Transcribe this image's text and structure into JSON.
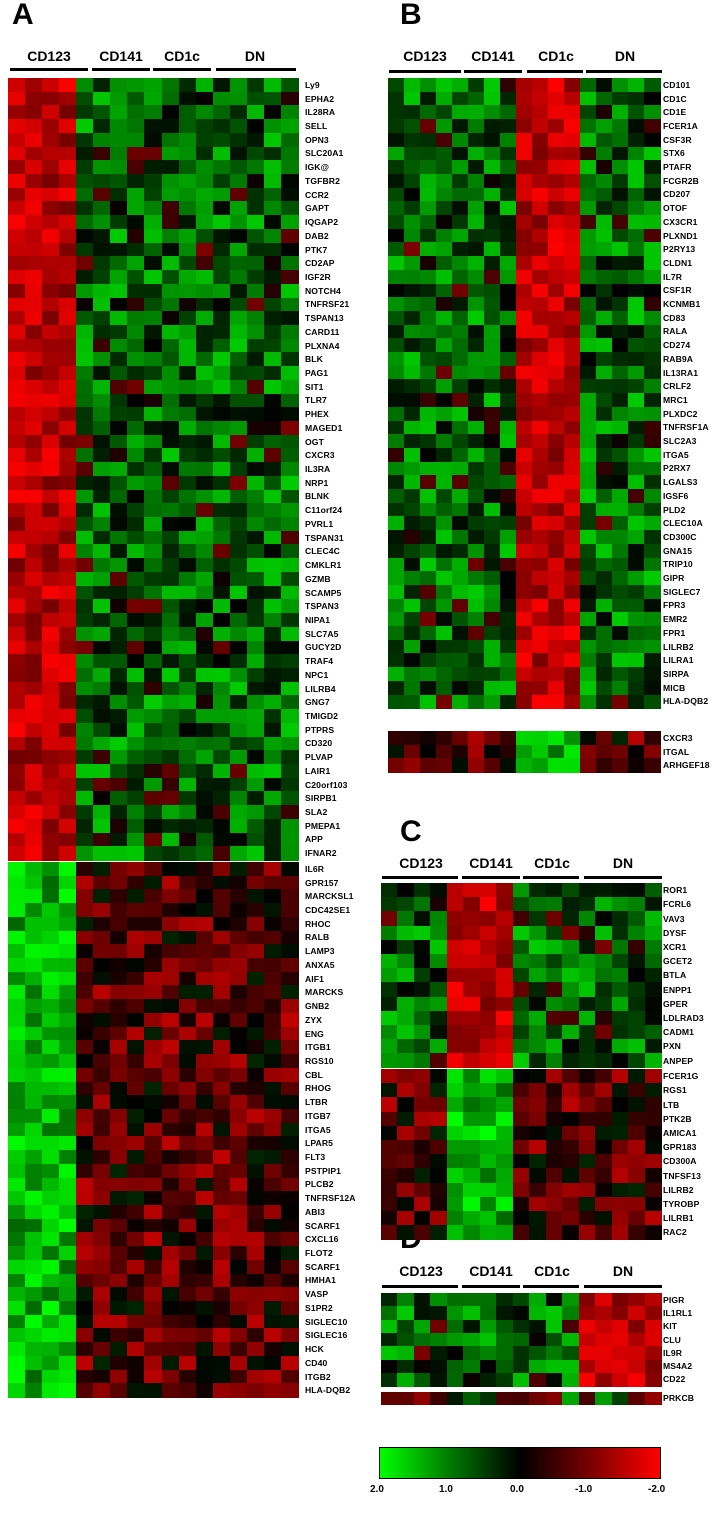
{
  "palette": {
    "green": "#00ff00",
    "black": "#000000",
    "red": "#ff0000"
  },
  "panels": {
    "A": {
      "letter": "A",
      "groups": [
        "CD123",
        "CD141",
        "CD1c",
        "DN"
      ],
      "blocks": [
        {
          "up_group": 0,
          "genes": [
            "Ly9",
            "EPHA2",
            "IL28RA",
            "SELL",
            "OPN3",
            "SLC20A1",
            "IGK@",
            "TGFBR2",
            "CCR2",
            "GAPT",
            "IQGAP2",
            "DAB2",
            "PTK7",
            "CD2AP",
            "IGF2R",
            "NOTCH4",
            "TNFRSF21",
            "TSPAN13",
            "CARD11",
            "PLXNA4",
            "BLK",
            "PAG1",
            "SIT1",
            "TLR7",
            "PHEX",
            "MAGED1",
            "OGT",
            "CXCR3",
            "IL3RA",
            "NRP1",
            "BLNK",
            "C11orf24",
            "PVRL1",
            "TSPAN31",
            "CLEC4C",
            "CMKLR1",
            "GZMB",
            "SCAMP5",
            "TSPAN3",
            "NIPA1",
            "SLC7A5",
            "GUCY2D",
            "TRAF4",
            "NPC1",
            "LILRB4",
            "GNG7",
            "TMIGD2",
            "PTPRS",
            "CD320",
            "PLVAP",
            "LAIR1",
            "C20orf103",
            "SIRPB1",
            "SLA2",
            "PMEPA1",
            "APP",
            "IFNAR2"
          ]
        },
        {
          "up_group": -1,
          "genes": [
            "IL6R",
            "GPR157",
            "MARCKSL1",
            "CDC42SE1",
            "RHOC",
            "RALB",
            "LAMP3",
            "ANXA5",
            "AIF1",
            "MARCKS",
            "GNB2",
            "ZYX",
            "ENG",
            "ITGB1",
            "RGS10",
            "CBL",
            "RHOG",
            "LTBR",
            "ITGB7",
            "ITGA5",
            "LPAR5",
            "FLT3",
            "PSTPIP1",
            "PLCB2",
            "TNFRSF12A",
            "ABI3",
            "SCARF1",
            "CXCL16",
            "FLOT2",
            "SCARF1",
            "HMHA1",
            "VASP",
            "S1PR2",
            "SIGLEC10",
            "SIGLEC16",
            "HCK",
            "CD40",
            "ITGB2",
            "HLA-DQB2"
          ]
        }
      ]
    },
    "B": {
      "letter": "B",
      "groups": [
        "CD123",
        "CD141",
        "CD1c",
        "DN"
      ],
      "blocks": [
        {
          "up_group": 2,
          "genes": [
            "CD101",
            "CD1C",
            "CD1E",
            "FCER1A",
            "CSF3R",
            "STX6",
            "PTAFR",
            "FCGR2B",
            "CD207",
            "OTOF",
            "CX3CR1",
            "PLXND1",
            "P2RY13",
            "CLDN1",
            "IL7R",
            "CSF1R",
            "KCNMB1",
            "CD83",
            "RALA",
            "CD274",
            "RAB9A",
            "IL13RA1",
            "CRLF2",
            "MRC1",
            "PLXDC2",
            "TNFRSF1A",
            "SLC2A3",
            "ITGA5",
            "P2RX7",
            "LGALS3",
            "IGSF6",
            "PLD2",
            "CLEC10A",
            "CD300C",
            "GNA15",
            "TRIP10",
            "GIPR",
            "SIGLEC7",
            "FPR3",
            "EMR2",
            "FPR1",
            "LILRB2",
            "LILRA1",
            "SIRPA",
            "MICB",
            "HLA-DQB2"
          ]
        },
        {
          "up_group": -3,
          "genes": [
            "CXCR3",
            "ITGAL",
            "ARHGEF18"
          ]
        }
      ]
    },
    "C": {
      "letter": "C",
      "groups": [
        "CD123",
        "CD141",
        "CD1c",
        "DN"
      ],
      "blocks": [
        {
          "up_group": 1,
          "genes": [
            "ROR1",
            "FCRL6",
            "VAV3",
            "DYSF",
            "XCR1",
            "GCET2",
            "BTLA",
            "ENPP1",
            "GPER",
            "LDLRAD3",
            "CADM1",
            "PXN",
            "ANPEP"
          ]
        },
        {
          "up_group": -2,
          "genes": [
            "FCER1G",
            "RGS1",
            "LTB",
            "PTK2B",
            "AMICA1",
            "GPR183",
            "CD300A",
            "TNFSF13",
            "LILRB2",
            "TYROBP",
            "LILRB1",
            "RAC2"
          ]
        }
      ]
    },
    "D": {
      "letter": "D",
      "groups": [
        "CD123",
        "CD141",
        "CD1c",
        "DN"
      ],
      "blocks": [
        {
          "up_group": 3,
          "genes": [
            "PIGR",
            "IL1RL1",
            "KIT",
            "CLU",
            "IL9R",
            "MS4A2",
            "CD22"
          ]
        },
        {
          "up_group": -4,
          "genes": [
            "PRKCB"
          ]
        }
      ]
    }
  },
  "scale": {
    "ticks": [
      "2.0",
      "1.0",
      "0.0",
      "-1.0",
      "-2.0"
    ]
  }
}
